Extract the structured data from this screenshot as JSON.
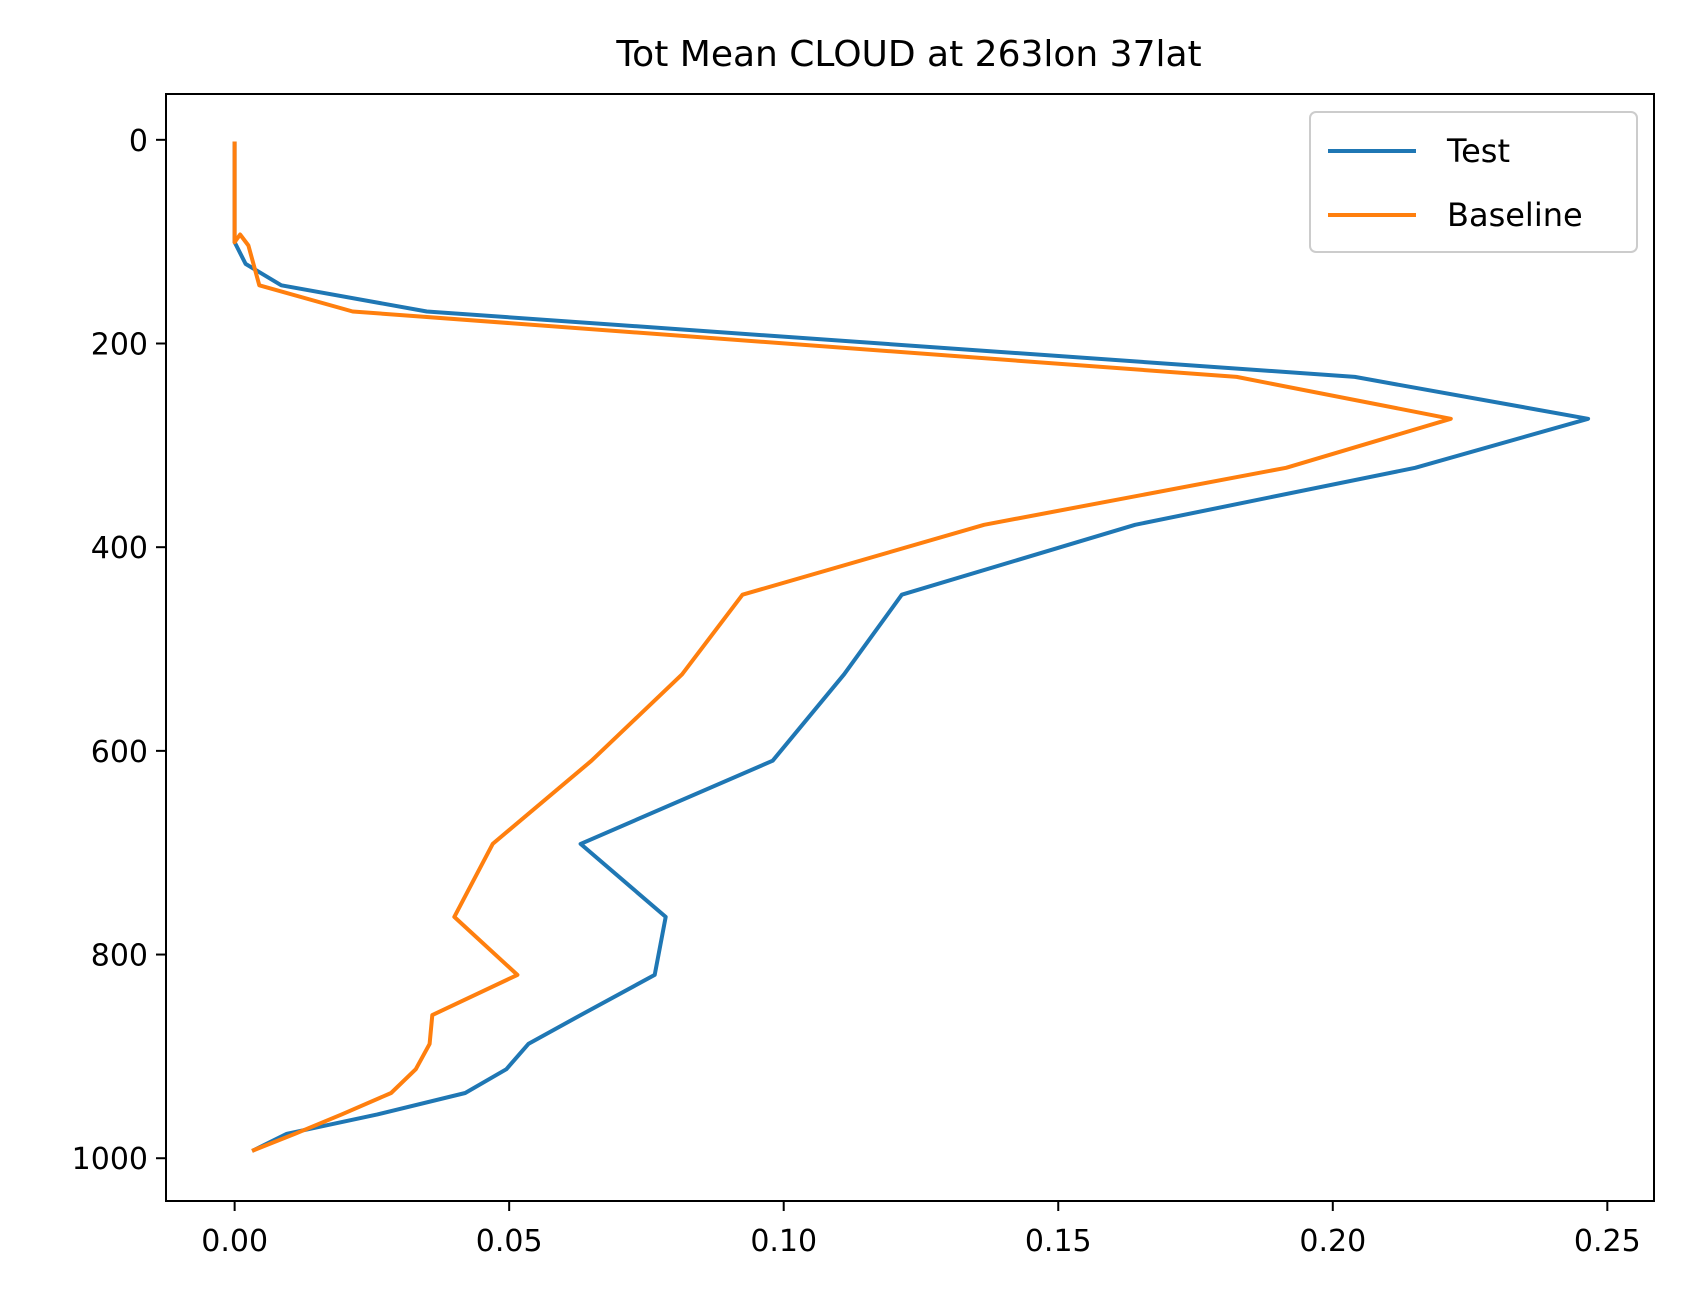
{
  "chart_data": {
    "type": "line",
    "title": "Tot Mean CLOUD at 263lon 37lat",
    "xlabel": "",
    "ylabel": "",
    "xlim": [
      -0.0125,
      0.2585
    ],
    "ylim": [
      1042,
      -45
    ],
    "y_inverted": true,
    "grid": false,
    "legend_position": "top-right",
    "x_ticks": [
      0.0,
      0.05,
      0.1,
      0.15,
      0.2,
      0.25
    ],
    "x_tick_labels": [
      "0.00",
      "0.05",
      "0.10",
      "0.15",
      "0.20",
      "0.25"
    ],
    "y_ticks": [
      0,
      200,
      400,
      600,
      800,
      1000
    ],
    "y_tick_labels": [
      "0",
      "200",
      "400",
      "600",
      "800",
      "1000"
    ],
    "series": [
      {
        "name": "Test",
        "color": "#1f77b4",
        "x": [
          0.0,
          0.0,
          0.0,
          0.0,
          0.0,
          0.0,
          0.0,
          0.0,
          0.0,
          0.0,
          0.0,
          0.0003,
          0.002,
          0.0085,
          0.035,
          0.204,
          0.2465,
          0.215,
          0.164,
          0.1215,
          0.111,
          0.098,
          0.063,
          0.0785,
          0.0765,
          0.063,
          0.0535,
          0.0495,
          0.042,
          0.026,
          0.0095,
          0.0035
        ],
        "y": [
          3.6,
          7.6,
          14.4,
          24.6,
          38.3,
          54.6,
          72.0,
          87.8,
          93.7,
          100.0,
          100.5,
          103.8,
          121.8,
          142.8,
          168.6,
          232.8,
          273.9,
          322.0,
          378.0,
          446.7,
          524.8,
          609.7,
          691.4,
          763.0,
          820.0,
          859.5,
          887.7,
          912.6,
          936.0,
          957.0,
          976.0,
          992.0
        ]
      },
      {
        "name": "Baseline",
        "color": "#ff7f0e",
        "x": [
          0.0,
          0.0,
          0.0,
          0.0,
          0.0,
          0.0,
          0.0,
          0.0,
          0.0,
          0.0,
          0.0,
          0.001,
          0.0025,
          0.0045,
          0.0215,
          0.1825,
          0.2215,
          0.1915,
          0.1365,
          0.0925,
          0.0815,
          0.065,
          0.047,
          0.04,
          0.0515,
          0.036,
          0.0355,
          0.033,
          0.0285,
          0.0195,
          0.011,
          0.0035
        ],
        "y": [
          3.6,
          7.6,
          14.4,
          24.6,
          38.3,
          54.6,
          72.0,
          87.8,
          93.7,
          100.0,
          100.5,
          93.0,
          103.8,
          142.8,
          168.6,
          232.8,
          273.9,
          322.0,
          378.0,
          446.7,
          524.8,
          609.7,
          691.4,
          763.0,
          820.0,
          859.5,
          887.7,
          912.6,
          936.0,
          957.0,
          976.0,
          992.0
        ]
      }
    ]
  }
}
